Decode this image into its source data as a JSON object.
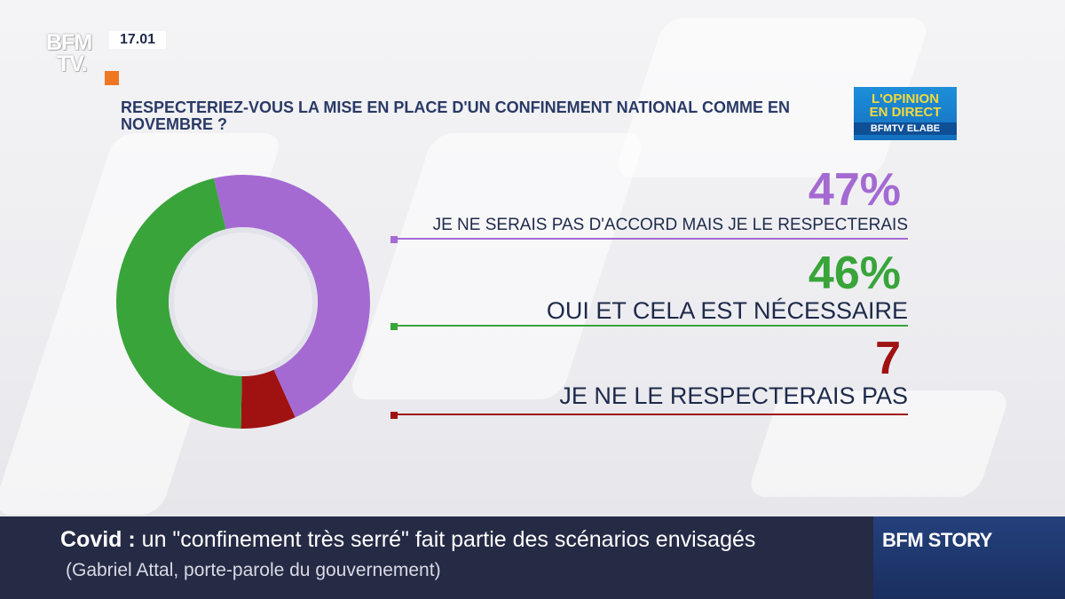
{
  "channel": {
    "logo_line1": "BFM",
    "logo_line2": "TV.",
    "time": "17.01"
  },
  "badge": {
    "line1": "L'OPINION",
    "line2": "EN DIRECT",
    "line3": "BFMTV ELABE"
  },
  "chart_data": {
    "type": "pie",
    "title": "RESPECTERIEZ-VOUS LA MISE EN PLACE D'UN CONFINEMENT NATIONAL COMME EN NOVEMBRE ?",
    "donut": true,
    "series": [
      {
        "label": "JE NE SERAIS PAS D'ACCORD MAIS JE LE RESPECTERAIS",
        "value": 47,
        "value_label": "47%",
        "color": "#a46ad2"
      },
      {
        "label": "OUI ET CELA EST NÉCESSAIRE",
        "value": 46,
        "value_label": "46%",
        "color": "#39a43a"
      },
      {
        "label": "JE NE LE RESPECTERAIS PAS",
        "value": 7,
        "value_label": "7",
        "color": "#a01212"
      }
    ]
  },
  "ticker": {
    "topic": "Covid",
    "separator": " : ",
    "headline": "un \"confinement très serré\" fait partie des scénarios envisagés",
    "attribution": "(Gabriel Attal, porte-parole du gouvernement)"
  },
  "program": "BFM STORY"
}
